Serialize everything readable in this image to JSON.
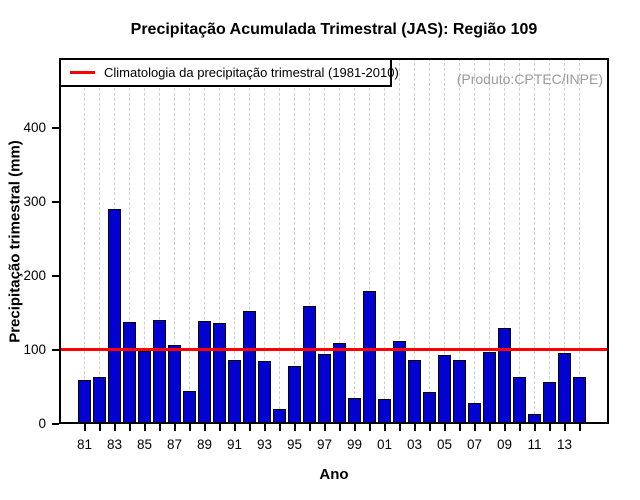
{
  "chart_data": {
    "type": "bar",
    "title": "Precipitação Acumulada Trimestral (JAS): Região 109",
    "xlabel": "Ano",
    "ylabel": "Precipitação trimestral (mm)",
    "watermark": "(Produto:CPTEC/INPE)",
    "legend": {
      "position": "top-left",
      "entries": [
        {
          "label": "Climatologia da precipitação trimestral (1981-2010)",
          "type": "line",
          "color": "#ff0000"
        }
      ]
    },
    "categories": [
      "81",
      "82",
      "83",
      "84",
      "85",
      "86",
      "87",
      "88",
      "89",
      "90",
      "91",
      "92",
      "93",
      "94",
      "95",
      "96",
      "97",
      "98",
      "99",
      "00",
      "01",
      "02",
      "03",
      "04",
      "05",
      "06",
      "07",
      "08",
      "09",
      "10",
      "11",
      "12",
      "13",
      "14"
    ],
    "values": [
      59,
      64,
      290,
      137,
      98,
      140,
      106,
      45,
      139,
      136,
      87,
      153,
      85,
      20,
      78,
      159,
      94,
      110,
      35,
      180,
      34,
      112,
      87,
      43,
      93,
      87,
      28,
      97,
      129,
      63,
      13,
      57,
      96,
      63
    ],
    "climatology_value": 100,
    "ylim": [
      0,
      494
    ],
    "yticks": [
      0,
      100,
      200,
      300,
      400
    ],
    "xtick_label_every": 2,
    "grid": {
      "vertical_dashed": true,
      "horizontal": false
    },
    "colors": {
      "bar_fill": "#0202d0",
      "bar_border": "#000000",
      "climatology_line": "#ff0000",
      "grid_line": "#cfcfcf",
      "watermark_text": "#9b9b9b",
      "axis": "#000000",
      "background": "#ffffff"
    }
  }
}
